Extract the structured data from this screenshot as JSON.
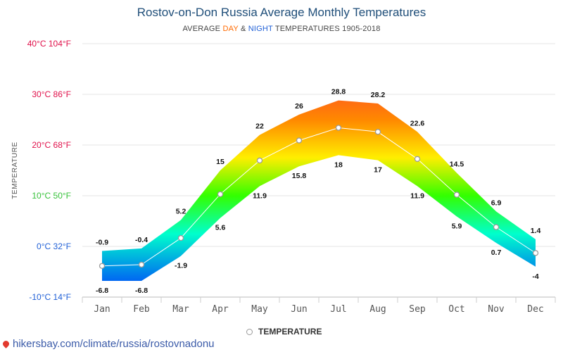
{
  "header": {
    "title": "Rostov-on-Don Russia Average Monthly Temperatures",
    "subtitle_prefix": "AVERAGE ",
    "subtitle_day": "DAY",
    "subtitle_amp": " & ",
    "subtitle_night": "NIGHT",
    "subtitle_suffix": " TEMPERATURES 1905-2018"
  },
  "legend": {
    "label": "TEMPERATURE"
  },
  "footer": {
    "url": "hikersbay.com/climate/russia/rostovnadonu"
  },
  "colors": {
    "hot": "#ff1a4a",
    "warm": "#ff8800",
    "mild": "#ffee00",
    "cool": "#33ff00",
    "cold": "#00ffcc",
    "freezing": "#0033ff"
  },
  "chart_data": {
    "type": "area",
    "title": "Rostov-on-Don Russia Average Monthly Temperatures",
    "ylabel": "TEMPERATURE",
    "categories": [
      "Jan",
      "Feb",
      "Mar",
      "Apr",
      "May",
      "Jun",
      "Jul",
      "Aug",
      "Sep",
      "Oct",
      "Nov",
      "Dec"
    ],
    "ylim": [
      -10,
      40
    ],
    "y_ticks": [
      {
        "value": 40,
        "label": "40°C 104°F",
        "color": "#e0104a"
      },
      {
        "value": 30,
        "label": "30°C 86°F",
        "color": "#e0104a"
      },
      {
        "value": 20,
        "label": "20°C 68°F",
        "color": "#e0104a"
      },
      {
        "value": 10,
        "label": "10°C 50°F",
        "color": "#36c23a"
      },
      {
        "value": 0,
        "label": "0°C 32°F",
        "color": "#1f5fd6"
      },
      {
        "value": -10,
        "label": "-10°C 14°F",
        "color": "#1f5fd6"
      }
    ],
    "grid": true,
    "legend_position": "bottom",
    "series": [
      {
        "name": "DAY",
        "values": [
          -0.9,
          -0.4,
          5.2,
          15,
          22,
          26,
          28.8,
          28.2,
          22.6,
          14.5,
          6.9,
          1.4
        ]
      },
      {
        "name": "NIGHT",
        "values": [
          -6.8,
          -6.8,
          -1.9,
          5.6,
          11.9,
          15.8,
          18,
          17,
          11.9,
          5.9,
          0.7,
          -4
        ]
      },
      {
        "name": "TEMPERATURE",
        "values": [
          -3.85,
          -3.6,
          1.65,
          10.3,
          16.95,
          20.9,
          23.4,
          22.6,
          17.25,
          10.2,
          3.8,
          -1.3
        ]
      }
    ]
  }
}
